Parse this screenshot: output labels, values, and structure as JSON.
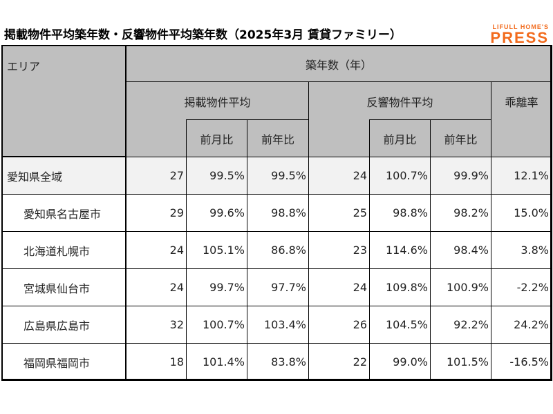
{
  "title": "掲載物件平均築年数・反響物件平均築年数（2025年3月 賃貸ファミリー）",
  "logo": {
    "line1": "LIFULL HOME'S",
    "line2": "PRESS",
    "color": "#f26b1d"
  },
  "header": {
    "area": "エリア",
    "age": "築年数（年）",
    "listed": "掲載物件平均",
    "response": "反響物件平均",
    "gap": "乖離率",
    "mom": "前月比",
    "yoy": "前年比"
  },
  "rows": [
    {
      "area": "愛知県全域",
      "listed": "27",
      "listed_mom": "99.5%",
      "listed_yoy": "99.5%",
      "resp": "24",
      "resp_mom": "100.7%",
      "resp_yoy": "99.9%",
      "gap": "12.1%"
    },
    {
      "area": "愛知県名古屋市",
      "listed": "29",
      "listed_mom": "99.6%",
      "listed_yoy": "98.8%",
      "resp": "25",
      "resp_mom": "98.8%",
      "resp_yoy": "98.2%",
      "gap": "15.0%"
    },
    {
      "area": "北海道札幌市",
      "listed": "24",
      "listed_mom": "105.1%",
      "listed_yoy": "86.8%",
      "resp": "23",
      "resp_mom": "114.6%",
      "resp_yoy": "98.4%",
      "gap": "3.8%"
    },
    {
      "area": "宮城県仙台市",
      "listed": "24",
      "listed_mom": "99.7%",
      "listed_yoy": "97.7%",
      "resp": "24",
      "resp_mom": "109.8%",
      "resp_yoy": "100.9%",
      "gap": "-2.2%"
    },
    {
      "area": "広島県広島市",
      "listed": "32",
      "listed_mom": "100.7%",
      "listed_yoy": "103.4%",
      "resp": "26",
      "resp_mom": "104.5%",
      "resp_yoy": "92.2%",
      "gap": "24.2%"
    },
    {
      "area": "福岡県福岡市",
      "listed": "18",
      "listed_mom": "101.4%",
      "listed_yoy": "83.8%",
      "resp": "22",
      "resp_mom": "99.0%",
      "resp_yoy": "101.5%",
      "gap": "-16.5%"
    }
  ]
}
